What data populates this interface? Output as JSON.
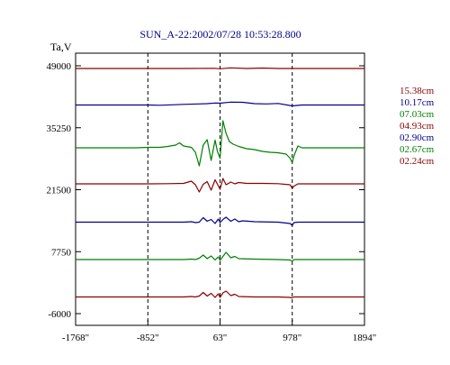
{
  "chart_data": {
    "type": "line",
    "title": "SUN_A-22:2002/07/28 10:53:28.800",
    "ylabel": "Ta,V",
    "xlabel": "",
    "xlim": [
      -1768,
      1894
    ],
    "ylim": [
      -6000,
      51000
    ],
    "x_ticks": [
      -1768,
      -852,
      63,
      978,
      1894
    ],
    "x_tick_labels": [
      "-1768\"",
      "-852\"",
      "63\"",
      "978\"",
      "1894\""
    ],
    "y_ticks": [
      49000,
      35250,
      21500,
      7750,
      -6000
    ],
    "y_tick_labels": [
      "49000",
      "35250",
      "21500",
      "7750",
      "-6000"
    ],
    "vlines": [
      -852,
      63,
      978
    ],
    "grid": false,
    "legend_position": "right",
    "series": [
      {
        "name": "15.38cm",
        "color": "#8b0000",
        "baseline": 48400,
        "x": [
          -1768,
          -400,
          0,
          63,
          200,
          400,
          600,
          800,
          978,
          1200,
          1894
        ],
        "y": [
          48400,
          48400,
          48450,
          48350,
          48550,
          48400,
          48500,
          48400,
          48400,
          48400,
          48400
        ]
      },
      {
        "name": "10.17cm",
        "color": "#00008b",
        "baseline": 40300,
        "x": [
          -1768,
          -852,
          -700,
          -400,
          -200,
          -100,
          0,
          63,
          200,
          350,
          500,
          650,
          800,
          978,
          1100,
          1894
        ],
        "y": [
          40300,
          40300,
          40250,
          40450,
          40550,
          40600,
          40750,
          40700,
          40950,
          40900,
          40600,
          40550,
          40650,
          40100,
          40300,
          40300
        ]
      },
      {
        "name": "07.03cm",
        "color": "#008000",
        "baseline": 30800,
        "x": [
          -1768,
          -1000,
          -852,
          -700,
          -600,
          -500,
          -450,
          -400,
          -300,
          -250,
          -200,
          -150,
          -100,
          -50,
          0,
          30,
          63,
          100,
          140,
          180,
          230,
          300,
          400,
          500,
          600,
          700,
          800,
          900,
          950,
          978,
          1000,
          1050,
          1100,
          1894
        ],
        "y": [
          30800,
          30800,
          30900,
          30900,
          31100,
          31400,
          31900,
          31200,
          30900,
          29800,
          26800,
          31400,
          32600,
          28000,
          32500,
          30000,
          28500,
          36800,
          34000,
          32200,
          31600,
          31100,
          30600,
          30400,
          30000,
          29800,
          29700,
          29400,
          28500,
          27500,
          29000,
          31200,
          30800,
          30800
        ]
      },
      {
        "name": "04.93cm",
        "color": "#8b0000",
        "baseline": 22800,
        "x": [
          -1768,
          -852,
          -600,
          -400,
          -300,
          -250,
          -200,
          -150,
          -100,
          -50,
          0,
          40,
          63,
          100,
          140,
          200,
          250,
          300,
          400,
          600,
          800,
          950,
          978,
          1000,
          1050,
          1894
        ],
        "y": [
          22800,
          22800,
          22850,
          22900,
          23400,
          22600,
          21000,
          22700,
          23300,
          21400,
          23700,
          22400,
          21600,
          24000,
          22600,
          23200,
          22800,
          23100,
          22900,
          22900,
          22850,
          22600,
          21800,
          22300,
          22800,
          22800
        ]
      },
      {
        "name": "02.90cm",
        "color": "#00008b",
        "baseline": 14300,
        "x": [
          -1768,
          -852,
          -400,
          -300,
          -250,
          -200,
          -150,
          -100,
          -50,
          0,
          40,
          63,
          100,
          140,
          200,
          250,
          300,
          350,
          500,
          800,
          950,
          978,
          1000,
          1050,
          1894
        ],
        "y": [
          14300,
          14300,
          14300,
          14400,
          14200,
          14300,
          15300,
          14500,
          14900,
          14000,
          15000,
          14200,
          14900,
          15400,
          14500,
          15000,
          14400,
          14600,
          14400,
          14300,
          14000,
          13600,
          14200,
          14300,
          14300
        ]
      },
      {
        "name": "02.67cm",
        "color": "#008000",
        "baseline": 6000,
        "x": [
          -1768,
          -852,
          -400,
          -300,
          -250,
          -200,
          -150,
          -100,
          -50,
          0,
          40,
          63,
          100,
          140,
          200,
          250,
          300,
          500,
          800,
          950,
          978,
          1000,
          1894
        ],
        "y": [
          6000,
          6000,
          6000,
          6100,
          6000,
          6300,
          7000,
          6200,
          6800,
          5900,
          6600,
          5800,
          6700,
          7600,
          6400,
          6700,
          6200,
          6100,
          6000,
          5900,
          5600,
          6000,
          6000
        ]
      },
      {
        "name": "02.24cm",
        "color": "#8b0000",
        "baseline": -2300,
        "x": [
          -1768,
          -852,
          -400,
          -300,
          -250,
          -200,
          -150,
          -100,
          -50,
          0,
          40,
          63,
          100,
          140,
          200,
          250,
          300,
          500,
          800,
          950,
          978,
          1000,
          1894
        ],
        "y": [
          -2300,
          -2300,
          -2300,
          -2200,
          -2300,
          -2100,
          -1300,
          -2100,
          -1500,
          -2400,
          -1600,
          -2400,
          -1400,
          -1000,
          -2000,
          -1700,
          -2200,
          -2300,
          -2300,
          -2400,
          -2500,
          -2300,
          -2300
        ]
      }
    ]
  }
}
